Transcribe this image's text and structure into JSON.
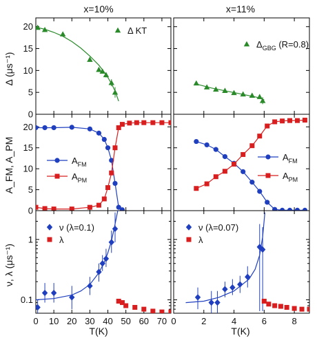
{
  "chart_data": [
    {
      "id": "delta10",
      "type": "scatter",
      "title": "x=10%",
      "ylabel": "Δ (μs⁻¹)",
      "xlim": [
        0,
        75
      ],
      "ylim": [
        0,
        22
      ],
      "yticks": [
        0,
        5,
        10,
        15,
        20
      ],
      "legend_position": "top-right",
      "series": [
        {
          "name": "Δ KT",
          "marker": "triangle",
          "color": "#2a8a2a",
          "x": [
            1,
            5,
            15,
            30,
            35,
            37,
            39,
            42,
            44
          ],
          "y": [
            19.8,
            19.3,
            18.3,
            12.5,
            10.2,
            9.8,
            9.0,
            7.2,
            5.0
          ],
          "err": [
            0.4,
            0.4,
            0.4,
            0.5,
            0.5,
            0.5,
            0.6,
            0.8,
            1.2
          ]
        },
        {
          "type": "line",
          "color": "#2a8a2a",
          "x": [
            0,
            5,
            10,
            15,
            20,
            25,
            30,
            35,
            38,
            40,
            42,
            44,
            46
          ],
          "y": [
            19.9,
            19.4,
            18.7,
            17.8,
            16.6,
            15.1,
            13.3,
            11.2,
            9.6,
            8.4,
            7.0,
            5.3,
            3.0
          ]
        }
      ]
    },
    {
      "id": "delta11",
      "type": "scatter",
      "title": "x=11%",
      "xlim": [
        0,
        9
      ],
      "ylim": [
        0,
        22
      ],
      "yticks": [
        0,
        5,
        10,
        15,
        20
      ],
      "legend_position": "top-right",
      "series": [
        {
          "name": "Δ",
          "name_sub": "GBG",
          "name_suffix": " (R=0.8)",
          "marker": "triangle",
          "color": "#2a8a2a",
          "x": [
            1.5,
            2.2,
            2.8,
            3.4,
            4.0,
            4.6,
            5.2,
            5.7,
            5.9
          ],
          "y": [
            7.1,
            6.2,
            5.7,
            5.4,
            4.9,
            4.6,
            4.3,
            4.0,
            3.1
          ],
          "err": [
            0.3,
            0.3,
            0.3,
            0.3,
            0.3,
            0.3,
            0.4,
            0.5,
            0.8
          ]
        },
        {
          "type": "line",
          "color": "#2a8a2a",
          "x": [
            1.5,
            2.5,
            3.5,
            4.5,
            5.5,
            6.0
          ],
          "y": [
            6.9,
            6.0,
            5.3,
            4.6,
            3.9,
            3.3
          ]
        }
      ]
    },
    {
      "id": "frac10",
      "type": "line",
      "ylabel": "A_FM, A_PM",
      "xlim": [
        0,
        75
      ],
      "ylim": [
        0,
        23
      ],
      "yticks": [
        0,
        5,
        10,
        15,
        20
      ],
      "legend_position": "middle-left",
      "series": [
        {
          "name": "A",
          "name_sub": "FM",
          "marker": "circle",
          "color": "#1f3fbf",
          "x": [
            0,
            5,
            10,
            20,
            30,
            35,
            38,
            40,
            42,
            44,
            46,
            48
          ],
          "y": [
            19.8,
            19.8,
            19.8,
            19.9,
            19.5,
            18.5,
            17.0,
            15.0,
            12.0,
            6.5,
            0.8,
            0.2
          ]
        },
        {
          "name": "A",
          "name_sub": "PM",
          "marker": "square",
          "color": "#d81e1e",
          "x": [
            0,
            5,
            10,
            20,
            30,
            35,
            38,
            40,
            42,
            44,
            46,
            48,
            52,
            56,
            60,
            65,
            70,
            75
          ],
          "y": [
            0.8,
            0.5,
            0.4,
            0.4,
            0.8,
            1.3,
            2.8,
            5.5,
            9.0,
            15.0,
            19.8,
            20.6,
            20.9,
            21.0,
            21.0,
            21.0,
            21.0,
            21.0
          ]
        }
      ]
    },
    {
      "id": "frac11",
      "type": "line",
      "xlim": [
        0,
        9
      ],
      "ylim": [
        0,
        23
      ],
      "yticks": [
        0,
        5,
        10,
        15,
        20
      ],
      "legend_position": "middle-right",
      "series": [
        {
          "name": "A",
          "name_sub": "FM",
          "marker": "circle",
          "color": "#1f3fbf",
          "x": [
            1.5,
            2.2,
            2.8,
            3.4,
            4.0,
            4.6,
            5.2,
            5.7,
            6.2,
            6.7,
            7.2,
            7.7,
            8.2,
            8.7
          ],
          "y": [
            16.5,
            15.7,
            14.6,
            12.9,
            11.3,
            9.3,
            6.8,
            4.6,
            2.0,
            0.3,
            0.1,
            0.1,
            0.1,
            0.1
          ]
        },
        {
          "name": "A",
          "name_sub": "PM",
          "marker": "square",
          "color": "#d81e1e",
          "x": [
            1.5,
            2.2,
            2.8,
            3.4,
            4.0,
            4.6,
            5.2,
            5.7,
            6.2,
            6.7,
            7.2,
            7.7,
            8.2,
            8.7
          ],
          "y": [
            5.3,
            6.4,
            8.1,
            9.4,
            11.1,
            13.4,
            15.5,
            17.8,
            20.2,
            21.2,
            21.4,
            21.5,
            21.5,
            21.6
          ]
        }
      ]
    },
    {
      "id": "nu10",
      "type": "scatter",
      "ylabel": "ν, λ (μs⁻¹)",
      "xlabel": "T(K)",
      "xlim": [
        0,
        75
      ],
      "ylim": [
        0.06,
        3.0
      ],
      "yscale": "log",
      "yticks": [
        0.1,
        1
      ],
      "xticks": [
        0,
        10,
        20,
        30,
        40,
        50,
        60,
        70
      ],
      "legend_position": "top-left",
      "series": [
        {
          "name": "ν (λ=0.1)",
          "marker": "diamond",
          "color": "#1f3fbf",
          "x": [
            1,
            5,
            10,
            20,
            30,
            35,
            37,
            39,
            42,
            44
          ],
          "y": [
            0.075,
            0.13,
            0.13,
            0.11,
            0.17,
            0.29,
            0.4,
            0.48,
            0.9,
            1.5
          ],
          "err_lo": [
            0.06,
            0.09,
            0.09,
            0.07,
            0.12,
            0.2,
            0.3,
            0.35,
            0.6,
            0.9
          ],
          "err_hi": [
            0.1,
            0.19,
            0.19,
            0.17,
            0.24,
            0.4,
            0.55,
            0.7,
            1.4,
            2.8
          ]
        },
        {
          "name": "λ",
          "marker": "square",
          "color": "#d81e1e",
          "x": [
            46,
            48,
            50,
            55,
            60,
            65,
            70,
            75
          ],
          "y": [
            0.095,
            0.09,
            0.08,
            0.075,
            0.07,
            0.065,
            0.063,
            0.063
          ]
        },
        {
          "type": "line",
          "color": "#1f3fbf",
          "x": [
            0,
            10,
            20,
            25,
            30,
            35,
            38,
            40,
            42,
            44,
            45.5
          ],
          "y": [
            0.1,
            0.105,
            0.12,
            0.14,
            0.18,
            0.28,
            0.42,
            0.6,
            0.95,
            1.8,
            3.0
          ]
        }
      ]
    },
    {
      "id": "nu11",
      "type": "scatter",
      "xlabel": "T(K)",
      "xlim": [
        0,
        9
      ],
      "ylim": [
        0.06,
        3.0
      ],
      "yscale": "log",
      "yticks": [
        0.1,
        1
      ],
      "xticks": [
        0,
        2,
        4,
        6,
        8
      ],
      "legend_position": "top-left",
      "series": [
        {
          "name": "ν (λ=0.07)",
          "marker": "diamond",
          "color": "#1f3fbf",
          "x": [
            1.6,
            2.5,
            2.9,
            3.4,
            3.9,
            4.4,
            4.9,
            5.7,
            5.9
          ],
          "y": [
            0.11,
            0.09,
            0.09,
            0.15,
            0.16,
            0.18,
            0.24,
            0.75,
            0.68
          ],
          "err_lo": [
            0.07,
            0.06,
            0.06,
            0.11,
            0.12,
            0.13,
            0.16,
            0.065,
            0.065
          ],
          "err_hi": [
            0.16,
            0.14,
            0.14,
            0.2,
            0.22,
            0.25,
            0.36,
            1.8,
            1.6
          ]
        },
        {
          "name": "λ",
          "marker": "square",
          "color": "#d81e1e",
          "x": [
            6.0,
            6.3,
            6.7,
            7.1,
            7.5,
            8.0,
            8.5,
            9.0
          ],
          "y": [
            0.095,
            0.085,
            0.08,
            0.078,
            0.075,
            0.072,
            0.07,
            0.07
          ]
        },
        {
          "type": "line",
          "color": "#1f3fbf",
          "x": [
            0.8,
            2,
            3,
            4,
            5,
            5.4,
            5.7,
            5.9,
            6.05
          ],
          "y": [
            0.09,
            0.095,
            0.11,
            0.14,
            0.22,
            0.32,
            0.55,
            1.1,
            2.8
          ]
        }
      ]
    }
  ]
}
